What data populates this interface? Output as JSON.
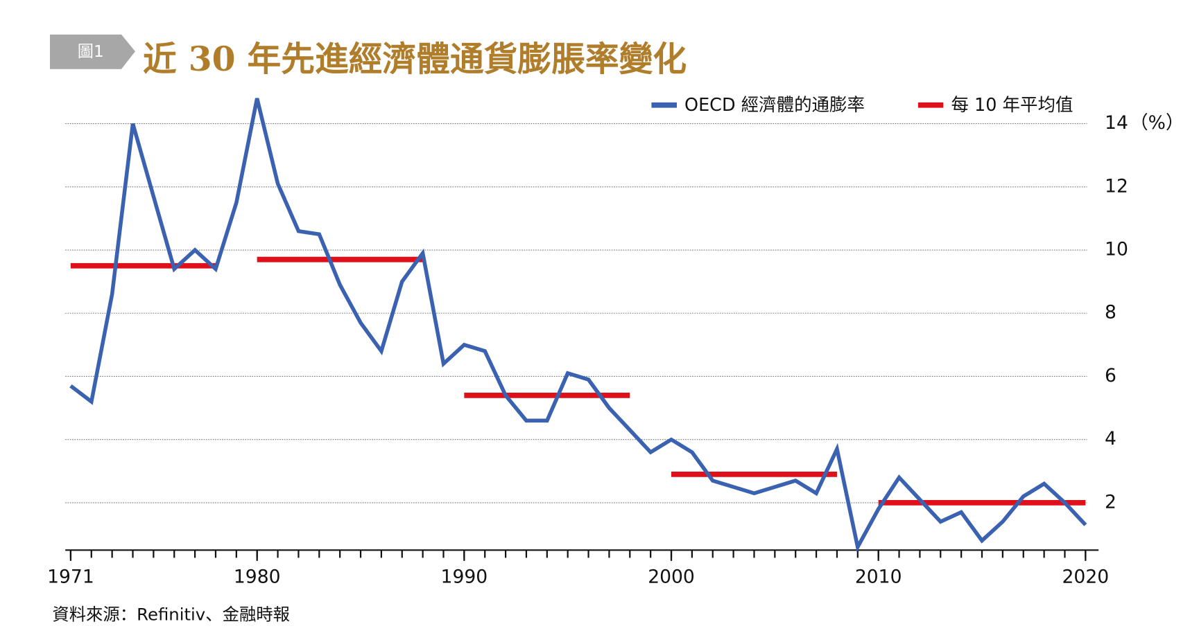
{
  "label": "圖1",
  "source": "資料來源：Refinitiv、金融時報",
  "chart_data": {
    "type": "line",
    "title": "近 30 年先進經濟體通貨膨脹率變化",
    "yunit": "（%）",
    "x": [
      1971,
      1972,
      1973,
      1974,
      1975,
      1976,
      1977,
      1978,
      1979,
      1980,
      1981,
      1982,
      1983,
      1984,
      1985,
      1986,
      1987,
      1988,
      1989,
      1990,
      1991,
      1992,
      1993,
      1994,
      1995,
      1996,
      1997,
      1998,
      1999,
      2000,
      2001,
      2002,
      2003,
      2004,
      2005,
      2006,
      2007,
      2008,
      2009,
      2010,
      2011,
      2012,
      2013,
      2014,
      2015,
      2016,
      2017,
      2018,
      2019,
      2020
    ],
    "series": [
      {
        "name": "OECD 經濟體的通膨率",
        "color": "#3a62b0",
        "values": [
          5.7,
          5.2,
          8.6,
          14.0,
          11.7,
          9.4,
          10.0,
          9.4,
          11.5,
          14.8,
          12.1,
          10.6,
          10.5,
          8.9,
          7.7,
          6.8,
          9.0,
          9.9,
          6.4,
          7.0,
          6.8,
          5.4,
          4.6,
          4.6,
          6.1,
          5.9,
          5.0,
          4.3,
          3.6,
          4.0,
          3.6,
          2.7,
          2.5,
          2.3,
          2.5,
          2.7,
          2.3,
          3.7,
          0.6,
          1.8,
          2.8,
          2.1,
          1.4,
          1.7,
          0.8,
          1.4,
          2.2,
          2.6,
          2.0,
          1.3
        ]
      },
      {
        "name": "每 10 年平均值",
        "color": "#e0101a",
        "values": [
          9.5,
          9.5,
          9.5,
          9.5,
          9.5,
          9.5,
          9.5,
          9.5,
          null,
          9.7,
          9.7,
          9.7,
          9.7,
          9.7,
          9.7,
          9.7,
          9.7,
          9.7,
          null,
          5.4,
          5.4,
          5.4,
          5.4,
          5.4,
          5.4,
          5.4,
          5.4,
          5.4,
          null,
          2.9,
          2.9,
          2.9,
          2.9,
          2.9,
          2.9,
          2.9,
          2.9,
          2.9,
          null,
          2.0,
          2.0,
          2.0,
          2.0,
          2.0,
          2.0,
          2.0,
          2.0,
          2.0,
          2.0,
          2.0
        ]
      }
    ],
    "xlim": [
      1971,
      2020
    ],
    "xticks": [
      1971,
      1980,
      1990,
      2000,
      2010,
      2020
    ],
    "ylim": [
      0.5,
      15
    ],
    "yticks": [
      2,
      4,
      6,
      8,
      10,
      12,
      14
    ],
    "grid": true
  }
}
